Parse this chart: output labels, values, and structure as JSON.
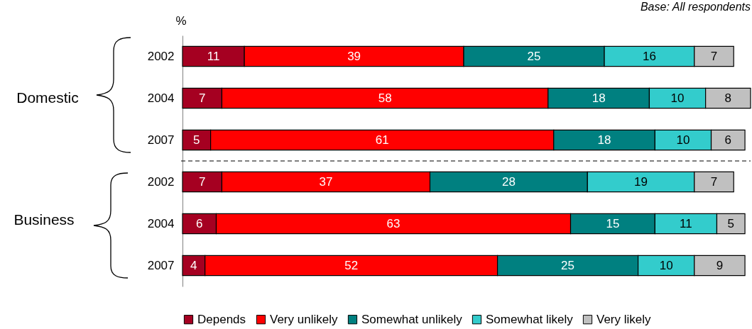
{
  "chart_data": {
    "type": "bar",
    "orientation": "horizontal",
    "stacked": true,
    "data_labels": true,
    "legend": "bottom",
    "xlim": [
      0,
      101
    ],
    "tick_labels": "y",
    "categories": [
      "2002",
      "2004",
      "2007",
      "2002",
      "2004",
      "2007"
    ],
    "series": [
      {
        "name": "Depends",
        "color": "#a50021",
        "values": [
          11,
          7,
          5,
          7,
          6,
          4
        ]
      },
      {
        "name": "Very unlikely",
        "color": "#ff0000",
        "values": [
          39,
          58,
          61,
          37,
          63,
          52
        ]
      },
      {
        "name": "Somewhat unlikely",
        "color": "#008080",
        "values": [
          25,
          18,
          18,
          28,
          15,
          25
        ]
      },
      {
        "name": "Somewhat likely",
        "color": "#33cccc",
        "values": [
          16,
          10,
          10,
          19,
          11,
          10
        ]
      },
      {
        "name": "Very likely",
        "color": "#c0c0c0",
        "values": [
          7,
          8,
          6,
          7,
          5,
          9
        ]
      }
    ],
    "annotations": [
      "%",
      "Base:  All respondents",
      "Domestic",
      "Business"
    ]
  }
}
